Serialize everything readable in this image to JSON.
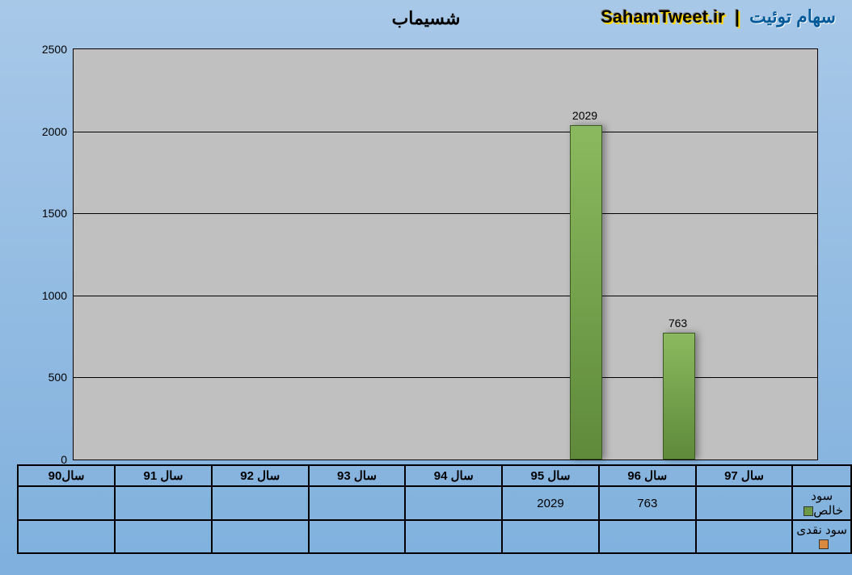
{
  "title": "شسیماب",
  "watermark": {
    "left": "SahamTweet.ir",
    "sep": "|",
    "right": "سهام توئیت"
  },
  "chart": {
    "type": "bar",
    "ylim": [
      0,
      2500
    ],
    "ytick_step": 500,
    "yticks": [
      "0",
      "500",
      "1000",
      "1500",
      "2000",
      "2500"
    ],
    "categories": [
      "سال90",
      "سال 91",
      "سال 92",
      "سال 93",
      "سال 94",
      "سال 95",
      "سال 96",
      "سال 97"
    ],
    "series": [
      {
        "name": "سود خالص",
        "color": "#6d9846",
        "values": [
          "",
          "",
          "",
          "",
          "",
          "2029",
          "763",
          ""
        ]
      },
      {
        "name": "سود نقدی",
        "color": "#d98a3e",
        "values": [
          "",
          "",
          "",
          "",
          "",
          "",
          "",
          ""
        ]
      }
    ],
    "bar_color": "#6d9846",
    "grid_color": "#000000",
    "plot_bg": "#c0c0c0",
    "page_bg_top": "#a8c8e8",
    "page_bg_bottom": "#7fb0dd",
    "title_fontsize": 22,
    "label_fontsize": 14
  }
}
